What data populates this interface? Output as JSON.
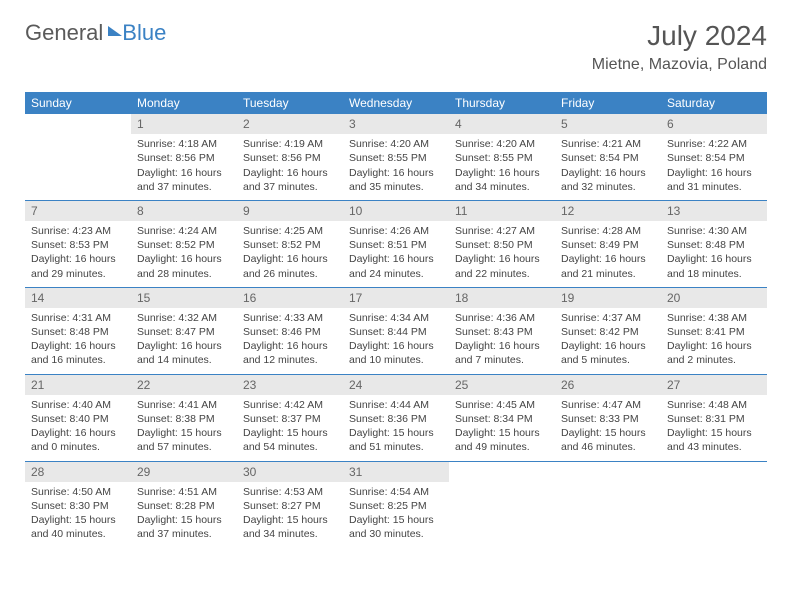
{
  "logo": {
    "part1": "General",
    "part2": "Blue"
  },
  "title": "July 2024",
  "location": "Mietne, Mazovia, Poland",
  "colors": {
    "header_bg": "#3b82c4",
    "header_text": "#ffffff",
    "daybar_bg": "#e8e8e8",
    "border": "#3b82c4",
    "text": "#444444",
    "title_text": "#555555"
  },
  "weekdays": [
    "Sunday",
    "Monday",
    "Tuesday",
    "Wednesday",
    "Thursday",
    "Friday",
    "Saturday"
  ],
  "weeks": [
    [
      null,
      {
        "n": "1",
        "sr": "Sunrise: 4:18 AM",
        "ss": "Sunset: 8:56 PM",
        "dl": "Daylight: 16 hours and 37 minutes."
      },
      {
        "n": "2",
        "sr": "Sunrise: 4:19 AM",
        "ss": "Sunset: 8:56 PM",
        "dl": "Daylight: 16 hours and 37 minutes."
      },
      {
        "n": "3",
        "sr": "Sunrise: 4:20 AM",
        "ss": "Sunset: 8:55 PM",
        "dl": "Daylight: 16 hours and 35 minutes."
      },
      {
        "n": "4",
        "sr": "Sunrise: 4:20 AM",
        "ss": "Sunset: 8:55 PM",
        "dl": "Daylight: 16 hours and 34 minutes."
      },
      {
        "n": "5",
        "sr": "Sunrise: 4:21 AM",
        "ss": "Sunset: 8:54 PM",
        "dl": "Daylight: 16 hours and 32 minutes."
      },
      {
        "n": "6",
        "sr": "Sunrise: 4:22 AM",
        "ss": "Sunset: 8:54 PM",
        "dl": "Daylight: 16 hours and 31 minutes."
      }
    ],
    [
      {
        "n": "7",
        "sr": "Sunrise: 4:23 AM",
        "ss": "Sunset: 8:53 PM",
        "dl": "Daylight: 16 hours and 29 minutes."
      },
      {
        "n": "8",
        "sr": "Sunrise: 4:24 AM",
        "ss": "Sunset: 8:52 PM",
        "dl": "Daylight: 16 hours and 28 minutes."
      },
      {
        "n": "9",
        "sr": "Sunrise: 4:25 AM",
        "ss": "Sunset: 8:52 PM",
        "dl": "Daylight: 16 hours and 26 minutes."
      },
      {
        "n": "10",
        "sr": "Sunrise: 4:26 AM",
        "ss": "Sunset: 8:51 PM",
        "dl": "Daylight: 16 hours and 24 minutes."
      },
      {
        "n": "11",
        "sr": "Sunrise: 4:27 AM",
        "ss": "Sunset: 8:50 PM",
        "dl": "Daylight: 16 hours and 22 minutes."
      },
      {
        "n": "12",
        "sr": "Sunrise: 4:28 AM",
        "ss": "Sunset: 8:49 PM",
        "dl": "Daylight: 16 hours and 21 minutes."
      },
      {
        "n": "13",
        "sr": "Sunrise: 4:30 AM",
        "ss": "Sunset: 8:48 PM",
        "dl": "Daylight: 16 hours and 18 minutes."
      }
    ],
    [
      {
        "n": "14",
        "sr": "Sunrise: 4:31 AM",
        "ss": "Sunset: 8:48 PM",
        "dl": "Daylight: 16 hours and 16 minutes."
      },
      {
        "n": "15",
        "sr": "Sunrise: 4:32 AM",
        "ss": "Sunset: 8:47 PM",
        "dl": "Daylight: 16 hours and 14 minutes."
      },
      {
        "n": "16",
        "sr": "Sunrise: 4:33 AM",
        "ss": "Sunset: 8:46 PM",
        "dl": "Daylight: 16 hours and 12 minutes."
      },
      {
        "n": "17",
        "sr": "Sunrise: 4:34 AM",
        "ss": "Sunset: 8:44 PM",
        "dl": "Daylight: 16 hours and 10 minutes."
      },
      {
        "n": "18",
        "sr": "Sunrise: 4:36 AM",
        "ss": "Sunset: 8:43 PM",
        "dl": "Daylight: 16 hours and 7 minutes."
      },
      {
        "n": "19",
        "sr": "Sunrise: 4:37 AM",
        "ss": "Sunset: 8:42 PM",
        "dl": "Daylight: 16 hours and 5 minutes."
      },
      {
        "n": "20",
        "sr": "Sunrise: 4:38 AM",
        "ss": "Sunset: 8:41 PM",
        "dl": "Daylight: 16 hours and 2 minutes."
      }
    ],
    [
      {
        "n": "21",
        "sr": "Sunrise: 4:40 AM",
        "ss": "Sunset: 8:40 PM",
        "dl": "Daylight: 16 hours and 0 minutes."
      },
      {
        "n": "22",
        "sr": "Sunrise: 4:41 AM",
        "ss": "Sunset: 8:38 PM",
        "dl": "Daylight: 15 hours and 57 minutes."
      },
      {
        "n": "23",
        "sr": "Sunrise: 4:42 AM",
        "ss": "Sunset: 8:37 PM",
        "dl": "Daylight: 15 hours and 54 minutes."
      },
      {
        "n": "24",
        "sr": "Sunrise: 4:44 AM",
        "ss": "Sunset: 8:36 PM",
        "dl": "Daylight: 15 hours and 51 minutes."
      },
      {
        "n": "25",
        "sr": "Sunrise: 4:45 AM",
        "ss": "Sunset: 8:34 PM",
        "dl": "Daylight: 15 hours and 49 minutes."
      },
      {
        "n": "26",
        "sr": "Sunrise: 4:47 AM",
        "ss": "Sunset: 8:33 PM",
        "dl": "Daylight: 15 hours and 46 minutes."
      },
      {
        "n": "27",
        "sr": "Sunrise: 4:48 AM",
        "ss": "Sunset: 8:31 PM",
        "dl": "Daylight: 15 hours and 43 minutes."
      }
    ],
    [
      {
        "n": "28",
        "sr": "Sunrise: 4:50 AM",
        "ss": "Sunset: 8:30 PM",
        "dl": "Daylight: 15 hours and 40 minutes."
      },
      {
        "n": "29",
        "sr": "Sunrise: 4:51 AM",
        "ss": "Sunset: 8:28 PM",
        "dl": "Daylight: 15 hours and 37 minutes."
      },
      {
        "n": "30",
        "sr": "Sunrise: 4:53 AM",
        "ss": "Sunset: 8:27 PM",
        "dl": "Daylight: 15 hours and 34 minutes."
      },
      {
        "n": "31",
        "sr": "Sunrise: 4:54 AM",
        "ss": "Sunset: 8:25 PM",
        "dl": "Daylight: 15 hours and 30 minutes."
      },
      null,
      null,
      null
    ]
  ]
}
